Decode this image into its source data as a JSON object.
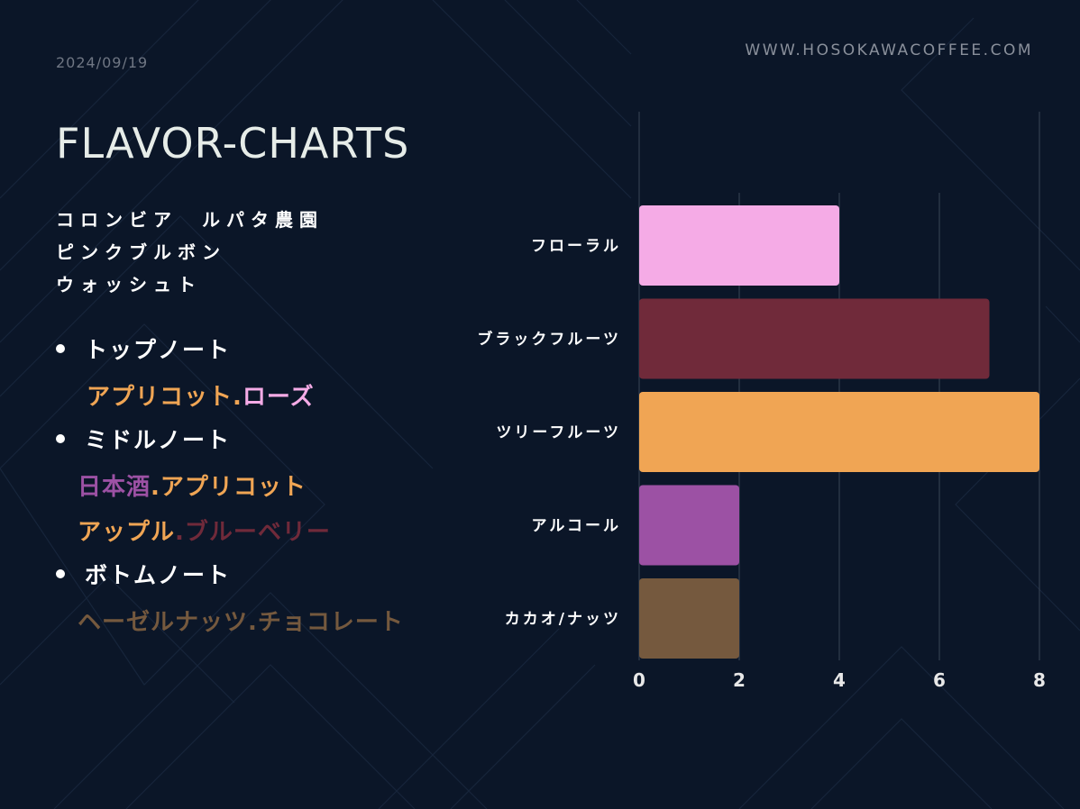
{
  "header": {
    "date": "2024/09/19",
    "website": "WWW.HOSOKAWACOFFEE.COM",
    "title": "FLAVOR-CHARTS"
  },
  "coffee": {
    "line1": "コロンビア　ルパタ農園",
    "line2": "ピンクブルボン",
    "line3": "ウォッシュト"
  },
  "notes": {
    "top": {
      "heading": "トップノート",
      "items": [
        "アプリコット",
        "ローズ"
      ]
    },
    "middle": {
      "heading": "ミドルノート",
      "line1": [
        "日本酒",
        "アプリコット"
      ],
      "line2": [
        "アップル",
        "ブルーベリー"
      ]
    },
    "bottom": {
      "heading": "ボトムノート",
      "items": [
        "ヘーゼルナッツ",
        "チョコレート"
      ]
    },
    "separator": "."
  },
  "colors": {
    "background": "#0b1628",
    "floral": "#f5abe6",
    "black_fruits": "#702a3a",
    "tree_fruits": "#f0a554",
    "alcohol": "#9c51a4",
    "cacao_nuts": "#75593e"
  },
  "chart_data": {
    "type": "bar",
    "orientation": "horizontal",
    "categories": [
      "フローラル",
      "ブラックフルーツ",
      "ツリーフルーツ",
      "アルコール",
      "カカオ/ナッツ"
    ],
    "values": [
      4,
      7,
      8,
      2,
      2
    ],
    "colors": [
      "#f5abe6",
      "#702a3a",
      "#f0a554",
      "#9c51a4",
      "#75593e"
    ],
    "xlim": [
      0,
      8
    ],
    "xticks": [
      0,
      2,
      4,
      6,
      8
    ],
    "grid": true,
    "legend": "none"
  }
}
